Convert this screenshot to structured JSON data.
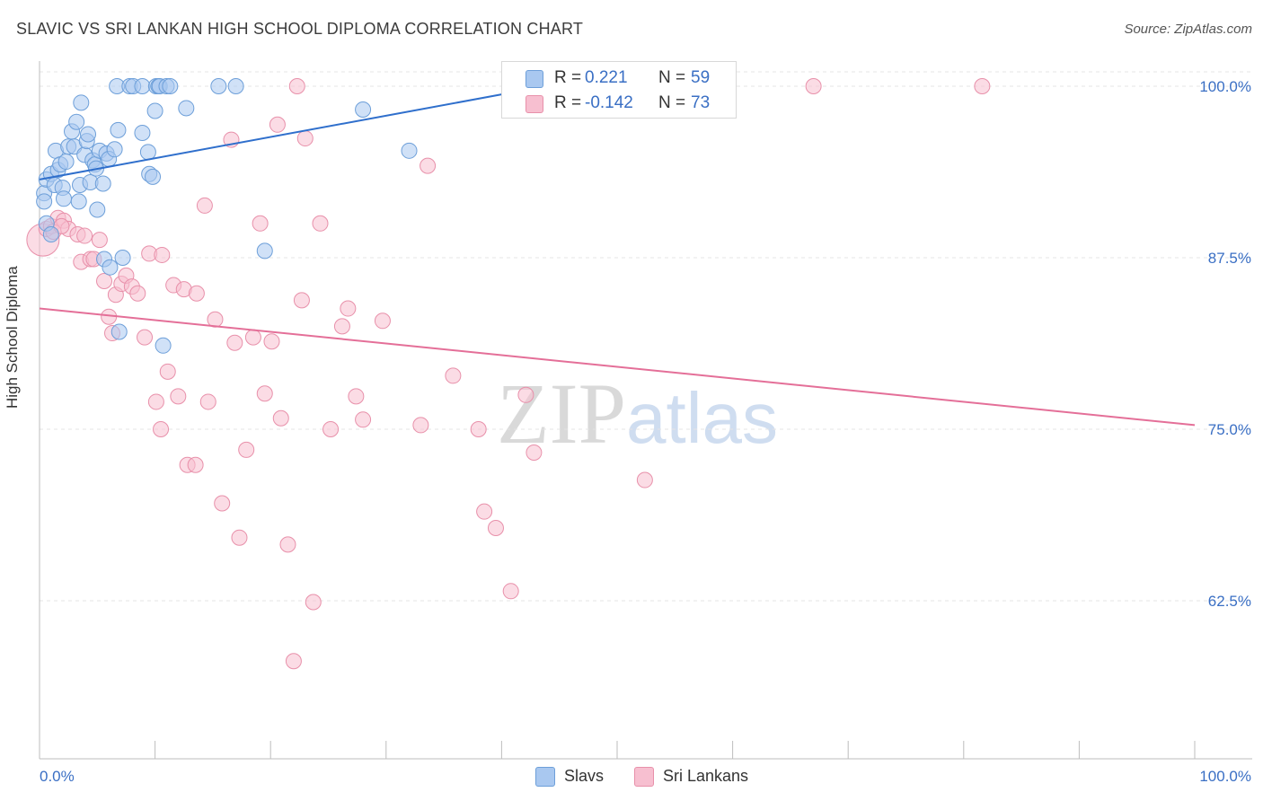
{
  "header": {
    "title": "SLAVIC VS SRI LANKAN HIGH SCHOOL DIPLOMA CORRELATION CHART",
    "source": "Source: ZipAtlas.com"
  },
  "watermark": {
    "part1": "ZIP",
    "part2": "atlas"
  },
  "legend_top": {
    "r_label": "R =",
    "n_label": "N =",
    "rows": [
      {
        "series": "Slavs",
        "r": "0.221",
        "n": "59",
        "color": "#a9c8f0"
      },
      {
        "series": "Sri Lankans",
        "r": "-0.142",
        "n": "73",
        "color": "#f7bfd0"
      }
    ]
  },
  "legend_bottom": {
    "items": [
      "Slavs",
      "Sri Lankans"
    ]
  },
  "colors": {
    "blue_fill": "#a9c8f0",
    "blue_stroke": "#6d9fd9",
    "blue_line": "#2f6fcc",
    "pink_fill": "#f7bfd0",
    "pink_stroke": "#e890aa",
    "pink_line": "#e46f98",
    "tick_label": "#3a6fc4"
  },
  "chart_data": {
    "type": "scatter",
    "title": "SLAVIC VS SRI LANKAN HIGH SCHOOL DIPLOMA CORRELATION CHART",
    "xlabel": "",
    "ylabel": "High School Diploma",
    "xlim": [
      0,
      100
    ],
    "ylim": [
      50,
      103
    ],
    "x_tick_labels": [
      "0.0%",
      "100.0%"
    ],
    "y_ticks": [
      62.5,
      75.0,
      87.5,
      100.0
    ],
    "y_tick_labels": [
      "62.5%",
      "75.0%",
      "87.5%",
      "100.0%"
    ],
    "grid": true,
    "series": [
      {
        "name": "Slavs",
        "r": 0.221,
        "n": 59,
        "trend": {
          "x": [
            0,
            40
          ],
          "y": [
            93.2,
            99.4
          ]
        },
        "points": [
          [
            0.4,
            92.2
          ],
          [
            0.4,
            91.6
          ],
          [
            0.6,
            90.0
          ],
          [
            0.6,
            93.2
          ],
          [
            1.0,
            93.6
          ],
          [
            1.3,
            92.8
          ],
          [
            1.4,
            95.3
          ],
          [
            1.6,
            93.9
          ],
          [
            1.8,
            94.3
          ],
          [
            2.0,
            92.6
          ],
          [
            2.1,
            91.8
          ],
          [
            2.3,
            94.5
          ],
          [
            2.5,
            95.6
          ],
          [
            2.8,
            96.7
          ],
          [
            3.0,
            95.6
          ],
          [
            3.2,
            97.4
          ],
          [
            3.4,
            91.6
          ],
          [
            3.5,
            92.8
          ],
          [
            3.6,
            98.8
          ],
          [
            3.9,
            95.0
          ],
          [
            4.1,
            96.0
          ],
          [
            4.2,
            96.5
          ],
          [
            4.4,
            93.0
          ],
          [
            4.6,
            94.6
          ],
          [
            4.8,
            94.3
          ],
          [
            4.9,
            94.0
          ],
          [
            5.0,
            91.0
          ],
          [
            5.2,
            95.3
          ],
          [
            5.5,
            92.9
          ],
          [
            5.6,
            87.4
          ],
          [
            5.8,
            95.1
          ],
          [
            6.0,
            94.7
          ],
          [
            6.1,
            86.8
          ],
          [
            6.5,
            95.4
          ],
          [
            6.8,
            96.8
          ],
          [
            6.9,
            82.1
          ],
          [
            7.2,
            87.5
          ],
          [
            6.7,
            100.0
          ],
          [
            7.8,
            100.0
          ],
          [
            8.1,
            100.0
          ],
          [
            8.9,
            100.0
          ],
          [
            8.9,
            96.6
          ],
          [
            9.4,
            95.2
          ],
          [
            9.5,
            93.6
          ],
          [
            9.8,
            93.4
          ],
          [
            10.0,
            98.2
          ],
          [
            10.1,
            100.0
          ],
          [
            10.3,
            100.0
          ],
          [
            10.4,
            100.0
          ],
          [
            10.7,
            81.1
          ],
          [
            11.0,
            100.0
          ],
          [
            11.3,
            100.0
          ],
          [
            12.7,
            98.4
          ],
          [
            15.5,
            100.0
          ],
          [
            17.0,
            100.0
          ],
          [
            19.5,
            88.0
          ],
          [
            28.0,
            98.3
          ],
          [
            32.0,
            95.3
          ],
          [
            1.0,
            89.2
          ]
        ]
      },
      {
        "name": "Sri Lankans",
        "r": -0.142,
        "n": 73,
        "trend": {
          "x": [
            0,
            100
          ],
          "y": [
            83.8,
            75.3
          ]
        },
        "points": [
          [
            0.3,
            88.8
          ],
          [
            0.6,
            89.6
          ],
          [
            1.0,
            89.8
          ],
          [
            1.2,
            89.4
          ],
          [
            1.6,
            90.4
          ],
          [
            2.1,
            90.2
          ],
          [
            2.5,
            89.6
          ],
          [
            3.3,
            89.2
          ],
          [
            3.6,
            87.2
          ],
          [
            3.9,
            89.1
          ],
          [
            4.4,
            87.4
          ],
          [
            4.7,
            87.4
          ],
          [
            5.2,
            88.8
          ],
          [
            5.6,
            85.8
          ],
          [
            6.0,
            83.2
          ],
          [
            6.3,
            82.0
          ],
          [
            6.6,
            84.8
          ],
          [
            7.1,
            85.6
          ],
          [
            7.5,
            86.2
          ],
          [
            8.0,
            85.4
          ],
          [
            8.5,
            84.9
          ],
          [
            9.1,
            81.7
          ],
          [
            9.5,
            87.8
          ],
          [
            10.1,
            77.0
          ],
          [
            10.5,
            75.0
          ],
          [
            10.6,
            87.7
          ],
          [
            11.1,
            79.2
          ],
          [
            11.6,
            85.5
          ],
          [
            12.0,
            77.4
          ],
          [
            12.5,
            85.2
          ],
          [
            12.8,
            72.4
          ],
          [
            13.5,
            72.4
          ],
          [
            13.6,
            84.9
          ],
          [
            14.3,
            91.3
          ],
          [
            14.6,
            77.0
          ],
          [
            15.2,
            83.0
          ],
          [
            15.8,
            69.6
          ],
          [
            16.6,
            96.1
          ],
          [
            16.9,
            81.3
          ],
          [
            17.3,
            67.1
          ],
          [
            17.9,
            73.5
          ],
          [
            18.5,
            81.7
          ],
          [
            19.1,
            90.0
          ],
          [
            19.5,
            77.6
          ],
          [
            20.1,
            81.4
          ],
          [
            20.6,
            97.2
          ],
          [
            20.9,
            75.8
          ],
          [
            21.5,
            66.6
          ],
          [
            22.0,
            58.1
          ],
          [
            22.3,
            100.0
          ],
          [
            22.7,
            84.4
          ],
          [
            23.0,
            96.2
          ],
          [
            23.7,
            62.4
          ],
          [
            24.3,
            90.0
          ],
          [
            25.2,
            75.0
          ],
          [
            26.2,
            82.5
          ],
          [
            26.7,
            83.8
          ],
          [
            27.4,
            77.4
          ],
          [
            28.0,
            75.7
          ],
          [
            29.7,
            82.9
          ],
          [
            33.0,
            75.3
          ],
          [
            33.6,
            94.2
          ],
          [
            35.8,
            78.9
          ],
          [
            38.0,
            75.0
          ],
          [
            38.5,
            69.0
          ],
          [
            39.5,
            67.8
          ],
          [
            40.8,
            63.2
          ],
          [
            42.1,
            77.5
          ],
          [
            42.8,
            73.3
          ],
          [
            52.4,
            71.3
          ],
          [
            67.0,
            100.0
          ],
          [
            81.6,
            100.0
          ],
          [
            1.9,
            89.8
          ]
        ]
      }
    ]
  }
}
